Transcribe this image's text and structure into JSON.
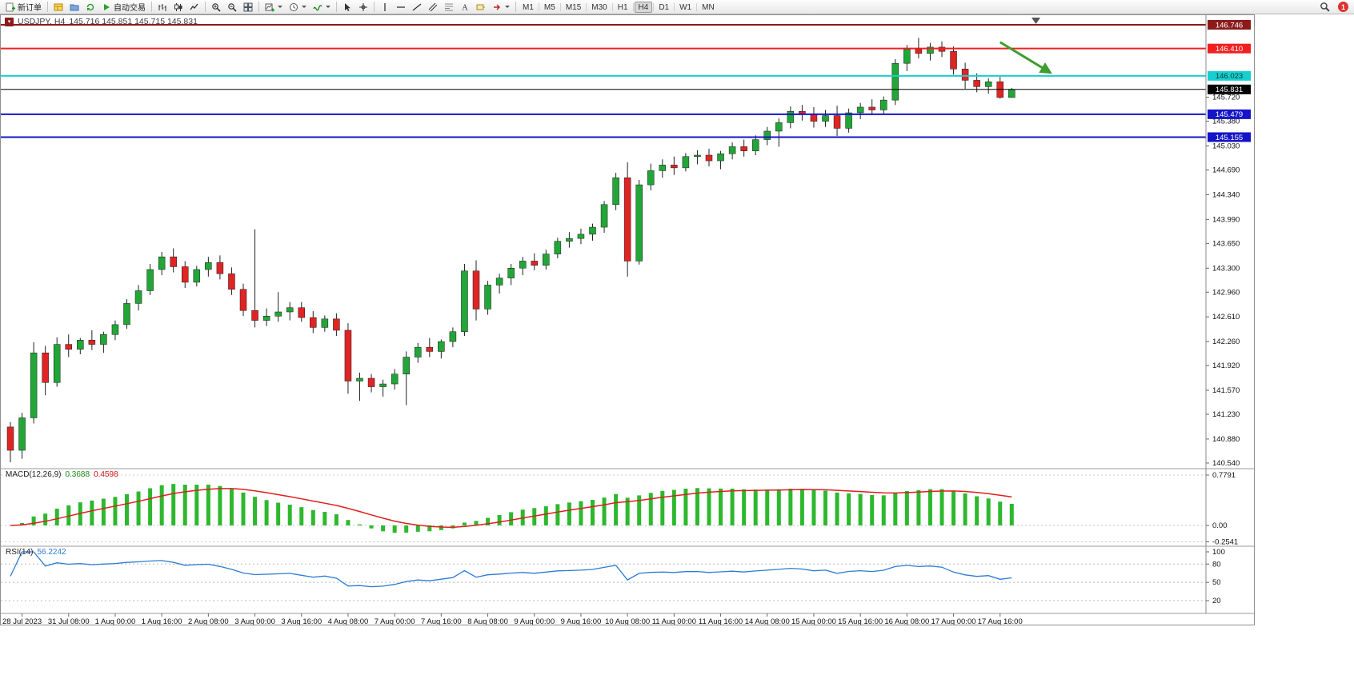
{
  "toolbar": {
    "items": [
      {
        "name": "new-order-button",
        "icon": "new-order",
        "label": "新订单"
      },
      {
        "sep": true
      },
      {
        "name": "charts-grid-button",
        "icon": "charts-grid"
      },
      {
        "name": "profiles-button",
        "icon": "profiles"
      },
      {
        "name": "refresh-button",
        "icon": "refresh"
      },
      {
        "name": "autotrading-button",
        "icon": "autotrade",
        "label": "自动交易"
      },
      {
        "sep": true
      },
      {
        "name": "bar-chart-button",
        "icon": "bar-chart"
      },
      {
        "name": "candlestick-chart-button",
        "icon": "candles"
      },
      {
        "name": "line-chart-button",
        "icon": "line-chart"
      },
      {
        "sep": true
      },
      {
        "name": "zoom-in-button",
        "icon": "zoom-in"
      },
      {
        "name": "zoom-out-button",
        "icon": "zoom-out"
      },
      {
        "name": "tile-windows-button",
        "icon": "tile"
      },
      {
        "sep": true
      },
      {
        "name": "new-chart-button",
        "icon": "new-chart",
        "dropdown": true
      },
      {
        "name": "period-selector-button",
        "icon": "clock",
        "dropdown": true
      },
      {
        "name": "indicators-button",
        "icon": "indicators",
        "dropdown": true
      },
      {
        "sep": true
      },
      {
        "name": "cursor-button",
        "icon": "cursor"
      },
      {
        "name": "crosshair-button",
        "icon": "crosshair"
      },
      {
        "sep": true
      },
      {
        "name": "vertical-line-button",
        "icon": "vline"
      },
      {
        "name": "horizontal-line-button",
        "icon": "hline"
      },
      {
        "name": "trendline-button",
        "icon": "trendline"
      },
      {
        "name": "channel-button",
        "icon": "channel"
      },
      {
        "name": "fibonacci-button",
        "icon": "fibo"
      },
      {
        "name": "text-button",
        "icon": "text"
      },
      {
        "name": "text-label-button",
        "icon": "label"
      },
      {
        "name": "arrows-button",
        "icon": "arrows",
        "dropdown": true
      },
      {
        "sep": true
      }
    ],
    "timeframes": [
      "M1",
      "M5",
      "M15",
      "M30",
      "H1",
      "H4",
      "D1",
      "W1",
      "MN"
    ],
    "active_timeframe": "H4",
    "notification_count": "1"
  },
  "chart_window": {
    "title": "USDJPY, H4",
    "ohlc_line": "145.716 145.851 145.715 145.831"
  },
  "chart_data": {
    "type": "candlestick",
    "symbol": "USDJPY",
    "period": "H4",
    "ylim": [
      140.46,
      146.882
    ],
    "candle_colors": {
      "up": "#21a637",
      "down": "#e02424"
    },
    "candles": [
      [
        141.05,
        141.12,
        140.55,
        140.72
      ],
      [
        140.72,
        141.25,
        140.6,
        141.18
      ],
      [
        141.18,
        142.25,
        141.1,
        142.1
      ],
      [
        142.1,
        142.2,
        141.5,
        141.68
      ],
      [
        141.68,
        142.32,
        141.62,
        142.22
      ],
      [
        142.22,
        142.36,
        142.04,
        142.15
      ],
      [
        142.15,
        142.31,
        142.08,
        142.28
      ],
      [
        142.28,
        142.42,
        142.14,
        142.22
      ],
      [
        142.22,
        142.4,
        142.1,
        142.36
      ],
      [
        142.36,
        142.56,
        142.28,
        142.5
      ],
      [
        142.5,
        142.86,
        142.44,
        142.8
      ],
      [
        142.8,
        143.06,
        142.7,
        142.98
      ],
      [
        142.98,
        143.36,
        142.92,
        143.28
      ],
      [
        143.28,
        143.53,
        143.2,
        143.46
      ],
      [
        143.46,
        143.58,
        143.24,
        143.32
      ],
      [
        143.32,
        143.4,
        143.02,
        143.1
      ],
      [
        143.1,
        143.33,
        143.04,
        143.28
      ],
      [
        143.28,
        143.46,
        143.18,
        143.38
      ],
      [
        143.38,
        143.48,
        143.14,
        143.22
      ],
      [
        143.22,
        143.31,
        142.92,
        143.0
      ],
      [
        143.0,
        143.08,
        142.62,
        142.7
      ],
      [
        142.7,
        143.85,
        142.46,
        142.56
      ],
      [
        142.56,
        142.73,
        142.48,
        142.62
      ],
      [
        142.62,
        142.96,
        142.54,
        142.68
      ],
      [
        142.68,
        142.82,
        142.56,
        142.74
      ],
      [
        142.74,
        142.82,
        142.54,
        142.6
      ],
      [
        142.6,
        142.69,
        142.38,
        142.46
      ],
      [
        142.46,
        142.63,
        142.4,
        142.58
      ],
      [
        142.58,
        142.66,
        142.34,
        142.42
      ],
      [
        142.42,
        142.52,
        141.52,
        141.7
      ],
      [
        141.7,
        141.82,
        141.42,
        141.74
      ],
      [
        141.74,
        141.8,
        141.54,
        141.62
      ],
      [
        141.62,
        141.72,
        141.48,
        141.66
      ],
      [
        141.66,
        141.87,
        141.58,
        141.8
      ],
      [
        141.8,
        142.12,
        141.36,
        142.04
      ],
      [
        142.04,
        142.24,
        141.96,
        142.18
      ],
      [
        142.18,
        142.31,
        142.04,
        142.12
      ],
      [
        142.12,
        142.29,
        142.02,
        142.26
      ],
      [
        142.26,
        142.46,
        142.18,
        142.4
      ],
      [
        142.4,
        143.36,
        142.34,
        143.26
      ],
      [
        143.26,
        143.41,
        142.56,
        142.72
      ],
      [
        142.72,
        143.12,
        142.64,
        143.06
      ],
      [
        143.06,
        143.22,
        142.94,
        143.16
      ],
      [
        143.16,
        143.36,
        143.06,
        143.3
      ],
      [
        143.3,
        143.46,
        143.2,
        143.4
      ],
      [
        143.4,
        143.51,
        143.27,
        143.34
      ],
      [
        143.34,
        143.56,
        143.28,
        143.5
      ],
      [
        143.5,
        143.73,
        143.44,
        143.68
      ],
      [
        143.68,
        143.81,
        143.59,
        143.72
      ],
      [
        143.72,
        143.86,
        143.64,
        143.78
      ],
      [
        143.78,
        143.93,
        143.69,
        143.88
      ],
      [
        143.88,
        144.25,
        143.8,
        144.2
      ],
      [
        144.2,
        144.65,
        144.12,
        144.58
      ],
      [
        144.58,
        144.8,
        143.18,
        143.4
      ],
      [
        143.4,
        144.55,
        143.35,
        144.48
      ],
      [
        144.48,
        144.78,
        144.4,
        144.68
      ],
      [
        144.68,
        144.84,
        144.58,
        144.76
      ],
      [
        144.76,
        144.88,
        144.62,
        144.72
      ],
      [
        144.72,
        144.93,
        144.67,
        144.88
      ],
      [
        144.88,
        144.97,
        144.77,
        144.9
      ],
      [
        144.9,
        144.99,
        144.74,
        144.82
      ],
      [
        144.82,
        144.96,
        144.7,
        144.92
      ],
      [
        144.92,
        145.08,
        144.84,
        145.02
      ],
      [
        145.02,
        145.12,
        144.88,
        144.96
      ],
      [
        144.96,
        145.18,
        144.9,
        145.12
      ],
      [
        145.12,
        145.3,
        145.04,
        145.24
      ],
      [
        145.24,
        145.42,
        145.02,
        145.36
      ],
      [
        145.36,
        145.59,
        145.28,
        145.52
      ],
      [
        145.52,
        145.61,
        145.39,
        145.48
      ],
      [
        145.48,
        145.58,
        145.29,
        145.38
      ],
      [
        145.38,
        145.54,
        145.3,
        145.46
      ],
      [
        145.46,
        145.6,
        145.17,
        145.28
      ],
      [
        145.28,
        145.56,
        145.22,
        145.5
      ],
      [
        145.5,
        145.64,
        145.41,
        145.58
      ],
      [
        145.58,
        145.69,
        145.47,
        145.54
      ],
      [
        145.54,
        145.73,
        145.49,
        145.68
      ],
      [
        145.68,
        146.26,
        145.61,
        146.2
      ],
      [
        146.2,
        146.46,
        146.09,
        146.4
      ],
      [
        146.4,
        146.56,
        146.27,
        146.34
      ],
      [
        146.34,
        146.49,
        146.24,
        146.43
      ],
      [
        146.43,
        146.51,
        146.29,
        146.37
      ],
      [
        146.37,
        146.44,
        146.04,
        146.12
      ],
      [
        146.12,
        146.21,
        145.84,
        145.96
      ],
      [
        145.96,
        146.06,
        145.79,
        145.87
      ],
      [
        145.87,
        145.99,
        145.77,
        145.94
      ],
      [
        145.94,
        146.01,
        145.7,
        145.716
      ],
      [
        145.716,
        145.851,
        145.715,
        145.831
      ]
    ],
    "x_labels": [
      "28 Jul 2023",
      "31 Jul 08:00",
      "1 Aug 00:00",
      "1 Aug 16:00",
      "2 Aug 08:00",
      "3 Aug 00:00",
      "3 Aug 16:00",
      "4 Aug 08:00",
      "7 Aug 00:00",
      "7 Aug 16:00",
      "8 Aug 08:00",
      "9 Aug 00:00",
      "9 Aug 16:00",
      "10 Aug 08:00",
      "11 Aug 00:00",
      "11 Aug 16:00",
      "14 Aug 08:00",
      "15 Aug 00:00",
      "15 Aug 16:00",
      "16 Aug 08:00",
      "17 Aug 00:00",
      "17 Aug 16:00"
    ],
    "x_label_first_candle_index": 1,
    "x_label_candle_step": 4,
    "price_axis_labels": [
      "145.720",
      "145.380",
      "145.030",
      "144.690",
      "144.340",
      "143.990",
      "143.650",
      "143.300",
      "142.960",
      "142.610",
      "142.260",
      "141.920",
      "141.570",
      "141.230",
      "140.880",
      "140.540"
    ],
    "horizontal_lines": [
      {
        "price": 146.746,
        "label": "146.746",
        "color": "#8b1a1a",
        "width": 2
      },
      {
        "price": 146.41,
        "label": "146.410",
        "color": "#f02020",
        "width": 2
      },
      {
        "price": 146.023,
        "label": "146.023",
        "color": "#17cfcf",
        "width": 2,
        "label_text_color": "#003939"
      },
      {
        "price": 145.479,
        "label": "145.479",
        "color": "#1414c8",
        "width": 2
      },
      {
        "price": 145.155,
        "label": "145.155",
        "color": "#1414c8",
        "width": 2
      }
    ],
    "bid_line": {
      "price": 145.831,
      "label": "145.831",
      "color": "#000000"
    },
    "annotation_arrow": {
      "from": {
        "x_index": 85,
        "price": 146.5
      },
      "to": {
        "x_index": 89.3,
        "price": 146.07
      },
      "color": "#3f9d2f",
      "width": 3
    },
    "macd": {
      "label": "MACD(12,26,9)",
      "value": "0.3688",
      "signal_value": "0.4598",
      "axis_labels": [
        "0.7791",
        "0.00",
        "-0.2541"
      ],
      "axis_values": [
        0.7791,
        0,
        -0.2541
      ],
      "ylim": [
        -0.322,
        0.878
      ],
      "histogram_color": "#2db82d",
      "signal_color": "#e01e1e"
    },
    "rsi": {
      "label": "RSI(14)",
      "value": "56.2242",
      "axis_labels": [
        "100",
        "80",
        "50",
        "20"
      ],
      "axis_values": [
        100,
        80,
        50,
        20
      ],
      "levels": [
        80,
        50,
        20
      ],
      "line_color": "#2b7cd3"
    }
  }
}
